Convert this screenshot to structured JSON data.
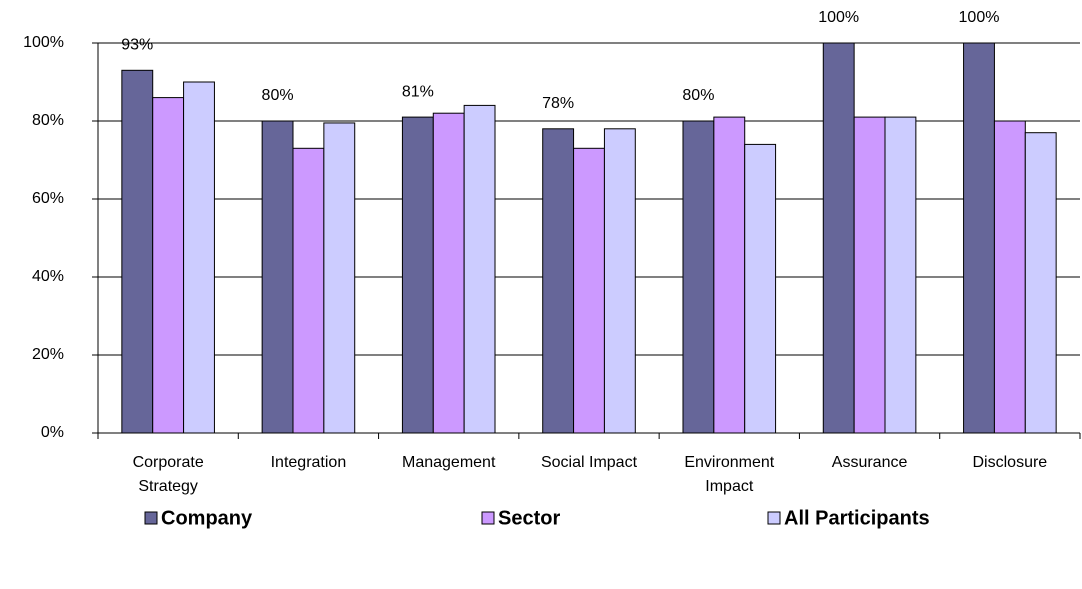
{
  "chart_data": {
    "type": "bar",
    "categories": [
      "Corporate Strategy",
      "Integration",
      "Management",
      "Social Impact",
      "Environment Impact",
      "Assurance",
      "Disclosure"
    ],
    "series": [
      {
        "name": "Company",
        "color": "#666699",
        "values": [
          93,
          80,
          81,
          78,
          80,
          100,
          100
        ],
        "value_labels": [
          "93%",
          "80%",
          "81%",
          "78%",
          "80%",
          "100%",
          "100%"
        ]
      },
      {
        "name": "Sector",
        "color": "#cc99ff",
        "values": [
          86,
          73,
          82,
          73,
          81,
          81,
          80
        ]
      },
      {
        "name": "All Participants",
        "color": "#ccccff",
        "values": [
          90,
          79.5,
          84,
          78,
          74,
          81,
          77
        ]
      }
    ],
    "ylim": [
      0,
      100
    ],
    "yticks": [
      {
        "value": 0,
        "label": "0%"
      },
      {
        "value": 20,
        "label": "20%"
      },
      {
        "value": 40,
        "label": "40%"
      },
      {
        "value": 60,
        "label": "60%"
      },
      {
        "value": 80,
        "label": "80%"
      },
      {
        "value": 100,
        "label": "100%"
      }
    ],
    "grid": true,
    "legend": "bottom"
  }
}
